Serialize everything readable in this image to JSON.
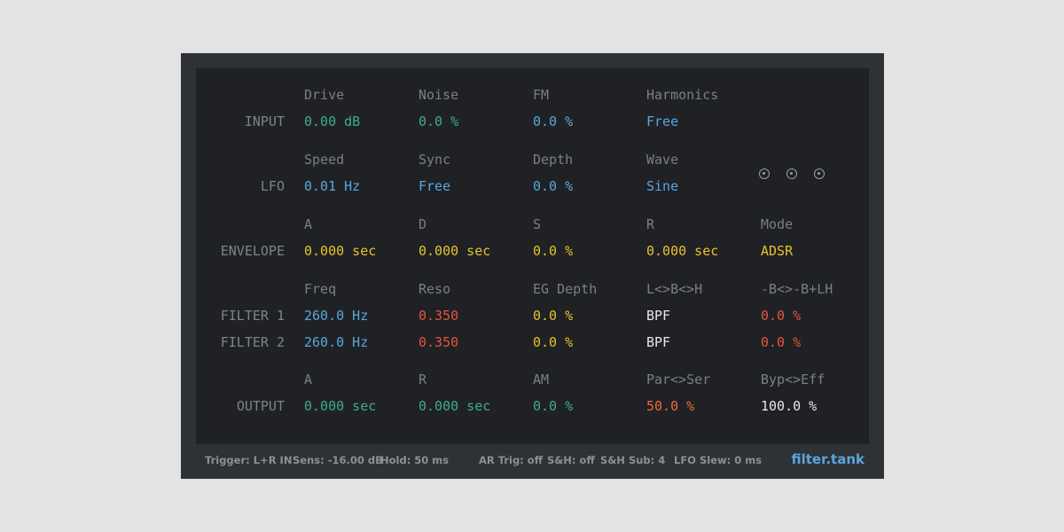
{
  "rows": {
    "input": {
      "label": "INPUT",
      "params": [
        {
          "name": "Drive",
          "value": "0.00 dB",
          "color": "#3fae85"
        },
        {
          "name": "Noise",
          "value": "0.0 %",
          "color": "#3fae85"
        },
        {
          "name": "FM",
          "value": "0.0 %",
          "color": "#5aa6dd"
        },
        {
          "name": "Harmonics",
          "value": "Free",
          "color": "#5aa6dd"
        }
      ]
    },
    "lfo": {
      "label": "LFO",
      "params": [
        {
          "name": "Speed",
          "value": "0.01 Hz",
          "color": "#5aa6dd"
        },
        {
          "name": "Sync",
          "value": "Free",
          "color": "#5aa6dd"
        },
        {
          "name": "Depth",
          "value": "0.0 %",
          "color": "#5aa6dd"
        },
        {
          "name": "Wave",
          "value": "Sine",
          "color": "#5aa6dd"
        }
      ],
      "icons": [
        "radio-target-icon",
        "radio-target-icon",
        "radio-target-icon"
      ]
    },
    "envelope": {
      "label": "ENVELOPE",
      "params": [
        {
          "name": "A",
          "value": "0.000 sec",
          "color": "#e6c329"
        },
        {
          "name": "D",
          "value": "0.000 sec",
          "color": "#e6c329"
        },
        {
          "name": "S",
          "value": "0.0 %",
          "color": "#e6c329"
        },
        {
          "name": "R",
          "value": "0.000 sec",
          "color": "#e6c329"
        },
        {
          "name": "Mode",
          "value": "ADSR",
          "color": "#e6c329"
        }
      ]
    },
    "filter": {
      "headers": [
        "Freq",
        "Reso",
        "EG Depth",
        "L<>B<>H",
        "-B<>-B+LH"
      ],
      "filter1": {
        "label": "FILTER 1",
        "values": [
          "260.0 Hz",
          "0.350",
          "0.0 %",
          "BPF",
          "0.0 %"
        ]
      },
      "filter2": {
        "label": "FILTER 2",
        "values": [
          "260.0 Hz",
          "0.350",
          "0.0 %",
          "BPF",
          "0.0 %"
        ]
      }
    },
    "output": {
      "label": "OUTPUT",
      "params": [
        {
          "name": "A",
          "value": "0.000 sec",
          "color": "#3fae85"
        },
        {
          "name": "R",
          "value": "0.000 sec",
          "color": "#3fae85"
        },
        {
          "name": "AM",
          "value": "0.0 %",
          "color": "#3fae85"
        },
        {
          "name": "Par<>Ser",
          "value": "50.0 %",
          "color": "#ee6a3e"
        },
        {
          "name": "Byp<>Eff",
          "value": "100.0 %",
          "color": "#e6e6e6"
        }
      ]
    }
  },
  "footer": {
    "trigger": "Trigger: L+R IN",
    "sens": "Sens: -16.00 dB",
    "hold": "Hold: 50 ms",
    "ar_trig": "AR Trig: off",
    "sh": "S&H: off",
    "sh_sub": "S&H Sub: 4",
    "lfo_slew": "LFO Slew: 0 ms",
    "brand": "filter.tank"
  },
  "colors": {
    "green": "#3fae85",
    "blue": "#5aa6dd",
    "yellow": "#e6c329",
    "red": "#e2553b",
    "orange": "#ee6a3e",
    "white": "#e6e6e6"
  }
}
